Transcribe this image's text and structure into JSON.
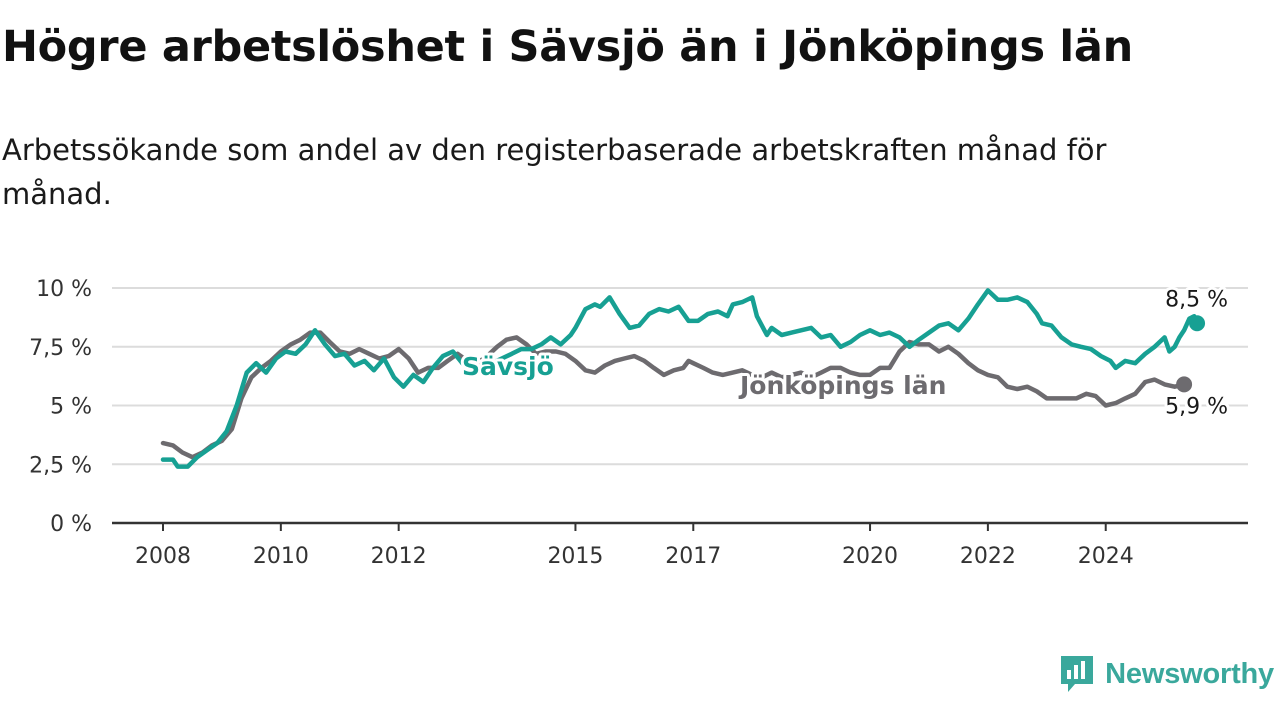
{
  "title": "Högre arbetslöshet i Sävsjö än i Jönköpings län",
  "subtitle": "Arbetssökande som andel av den registerbaserade arbetskraften månad för månad.",
  "brand": "Newsworthy",
  "colors": {
    "savsjo": "#17a093",
    "lan": "#6d6b6f",
    "grid": "#dcdcdc",
    "axis": "#333333"
  },
  "chart_data": {
    "type": "line",
    "title": "Högre arbetslöshet i Sävsjö än i Jönköpings län",
    "xlabel": "",
    "ylabel": "",
    "x_domain": [
      2008,
      2025.6
    ],
    "ylim": [
      0,
      10
    ],
    "x_ticks": [
      {
        "value": 2008,
        "label": "2008"
      },
      {
        "value": 2010,
        "label": "2010"
      },
      {
        "value": 2012,
        "label": "2012"
      },
      {
        "value": 2015,
        "label": "2015"
      },
      {
        "value": 2017,
        "label": "2017"
      },
      {
        "value": 2020,
        "label": "2020"
      },
      {
        "value": 2022,
        "label": "2022"
      },
      {
        "value": 2024,
        "label": "2024"
      }
    ],
    "y_ticks": [
      {
        "value": 0,
        "label": "0 %"
      },
      {
        "value": 2.5,
        "label": "2,5 %"
      },
      {
        "value": 5,
        "label": "5 %"
      },
      {
        "value": 7.5,
        "label": "7,5 %"
      },
      {
        "value": 10,
        "label": "10 %"
      }
    ],
    "series": [
      {
        "name": "Jönköpings län",
        "label": "Jönköpings län",
        "end_label": "5,9 %",
        "points": [
          [
            2008.0,
            3.4
          ],
          [
            2008.17,
            3.3
          ],
          [
            2008.33,
            3.0
          ],
          [
            2008.5,
            2.8
          ],
          [
            2008.67,
            3.0
          ],
          [
            2008.83,
            3.3
          ],
          [
            2009.0,
            3.5
          ],
          [
            2009.17,
            4.0
          ],
          [
            2009.33,
            5.3
          ],
          [
            2009.5,
            6.2
          ],
          [
            2009.67,
            6.6
          ],
          [
            2009.83,
            6.9
          ],
          [
            2010.0,
            7.3
          ],
          [
            2010.17,
            7.6
          ],
          [
            2010.33,
            7.8
          ],
          [
            2010.5,
            8.1
          ],
          [
            2010.67,
            8.1
          ],
          [
            2010.83,
            7.7
          ],
          [
            2011.0,
            7.3
          ],
          [
            2011.17,
            7.2
          ],
          [
            2011.33,
            7.4
          ],
          [
            2011.5,
            7.2
          ],
          [
            2011.67,
            7.0
          ],
          [
            2011.83,
            7.1
          ],
          [
            2012.0,
            7.4
          ],
          [
            2012.17,
            7.0
          ],
          [
            2012.33,
            6.4
          ],
          [
            2012.5,
            6.6
          ],
          [
            2012.67,
            6.6
          ],
          [
            2012.83,
            6.9
          ],
          [
            2013.0,
            7.2
          ],
          [
            2013.17,
            6.9
          ],
          [
            2013.33,
            6.8
          ],
          [
            2013.5,
            7.1
          ],
          [
            2013.67,
            7.5
          ],
          [
            2013.83,
            7.8
          ],
          [
            2014.0,
            7.9
          ],
          [
            2014.17,
            7.6
          ],
          [
            2014.33,
            7.2
          ],
          [
            2014.5,
            7.3
          ],
          [
            2014.67,
            7.3
          ],
          [
            2014.83,
            7.2
          ],
          [
            2015.0,
            6.9
          ],
          [
            2015.17,
            6.5
          ],
          [
            2015.33,
            6.4
          ],
          [
            2015.5,
            6.7
          ],
          [
            2015.67,
            6.9
          ],
          [
            2015.83,
            7.0
          ],
          [
            2016.0,
            7.1
          ],
          [
            2016.17,
            6.9
          ],
          [
            2016.33,
            6.6
          ],
          [
            2016.5,
            6.3
          ],
          [
            2016.67,
            6.5
          ],
          [
            2016.83,
            6.6
          ],
          [
            2016.92,
            6.9
          ],
          [
            2017.0,
            6.8
          ],
          [
            2017.17,
            6.6
          ],
          [
            2017.33,
            6.4
          ],
          [
            2017.5,
            6.3
          ],
          [
            2017.67,
            6.4
          ],
          [
            2017.83,
            6.5
          ],
          [
            2018.0,
            6.3
          ],
          [
            2018.17,
            6.2
          ],
          [
            2018.33,
            6.4
          ],
          [
            2018.5,
            6.2
          ],
          [
            2018.67,
            6.3
          ],
          [
            2018.83,
            6.4
          ],
          [
            2019.0,
            6.2
          ],
          [
            2019.17,
            6.4
          ],
          [
            2019.33,
            6.6
          ],
          [
            2019.5,
            6.6
          ],
          [
            2019.67,
            6.4
          ],
          [
            2019.83,
            6.3
          ],
          [
            2020.0,
            6.3
          ],
          [
            2020.17,
            6.6
          ],
          [
            2020.33,
            6.6
          ],
          [
            2020.5,
            7.3
          ],
          [
            2020.67,
            7.7
          ],
          [
            2020.83,
            7.6
          ],
          [
            2021.0,
            7.6
          ],
          [
            2021.17,
            7.3
          ],
          [
            2021.33,
            7.5
          ],
          [
            2021.5,
            7.2
          ],
          [
            2021.67,
            6.8
          ],
          [
            2021.83,
            6.5
          ],
          [
            2022.0,
            6.3
          ],
          [
            2022.17,
            6.2
          ],
          [
            2022.33,
            5.8
          ],
          [
            2022.5,
            5.7
          ],
          [
            2022.67,
            5.8
          ],
          [
            2022.83,
            5.6
          ],
          [
            2023.0,
            5.3
          ],
          [
            2023.17,
            5.3
          ],
          [
            2023.33,
            5.3
          ],
          [
            2023.5,
            5.3
          ],
          [
            2023.67,
            5.5
          ],
          [
            2023.83,
            5.4
          ],
          [
            2024.0,
            5.0
          ],
          [
            2024.17,
            5.1
          ],
          [
            2024.33,
            5.3
          ],
          [
            2024.5,
            5.5
          ],
          [
            2024.67,
            6.0
          ],
          [
            2024.83,
            6.1
          ],
          [
            2025.0,
            5.9
          ],
          [
            2025.17,
            5.8
          ],
          [
            2025.33,
            5.9
          ]
        ]
      },
      {
        "name": "Sävsjö",
        "label": "Sävsjö",
        "end_label": "8,5 %",
        "points": [
          [
            2008.0,
            2.7
          ],
          [
            2008.17,
            2.7
          ],
          [
            2008.25,
            2.4
          ],
          [
            2008.42,
            2.4
          ],
          [
            2008.58,
            2.8
          ],
          [
            2008.75,
            3.1
          ],
          [
            2008.92,
            3.4
          ],
          [
            2009.08,
            3.9
          ],
          [
            2009.25,
            5.0
          ],
          [
            2009.42,
            6.4
          ],
          [
            2009.58,
            6.8
          ],
          [
            2009.75,
            6.4
          ],
          [
            2009.92,
            7.0
          ],
          [
            2010.08,
            7.3
          ],
          [
            2010.25,
            7.2
          ],
          [
            2010.42,
            7.6
          ],
          [
            2010.58,
            8.2
          ],
          [
            2010.75,
            7.6
          ],
          [
            2010.92,
            7.1
          ],
          [
            2011.08,
            7.2
          ],
          [
            2011.25,
            6.7
          ],
          [
            2011.42,
            6.9
          ],
          [
            2011.58,
            6.5
          ],
          [
            2011.75,
            7.0
          ],
          [
            2011.92,
            6.2
          ],
          [
            2012.08,
            5.8
          ],
          [
            2012.25,
            6.3
          ],
          [
            2012.42,
            6.0
          ],
          [
            2012.58,
            6.6
          ],
          [
            2012.75,
            7.1
          ],
          [
            2012.92,
            7.3
          ],
          [
            2013.08,
            6.8
          ],
          [
            2013.25,
            6.4
          ],
          [
            2013.42,
            6.7
          ],
          [
            2013.58,
            6.8
          ],
          [
            2013.75,
            7.0
          ],
          [
            2013.92,
            7.2
          ],
          [
            2014.08,
            7.4
          ],
          [
            2014.25,
            7.4
          ],
          [
            2014.42,
            7.6
          ],
          [
            2014.58,
            7.9
          ],
          [
            2014.75,
            7.6
          ],
          [
            2014.92,
            8.0
          ],
          [
            2015.0,
            8.3
          ],
          [
            2015.17,
            9.1
          ],
          [
            2015.33,
            9.3
          ],
          [
            2015.42,
            9.2
          ],
          [
            2015.58,
            9.6
          ],
          [
            2015.75,
            8.9
          ],
          [
            2015.92,
            8.3
          ],
          [
            2016.08,
            8.4
          ],
          [
            2016.25,
            8.9
          ],
          [
            2016.42,
            9.1
          ],
          [
            2016.58,
            9.0
          ],
          [
            2016.75,
            9.2
          ],
          [
            2016.92,
            8.6
          ],
          [
            2017.08,
            8.6
          ],
          [
            2017.25,
            8.9
          ],
          [
            2017.42,
            9.0
          ],
          [
            2017.58,
            8.8
          ],
          [
            2017.67,
            9.3
          ],
          [
            2017.83,
            9.4
          ],
          [
            2018.0,
            9.6
          ],
          [
            2018.08,
            8.8
          ],
          [
            2018.25,
            8.0
          ],
          [
            2018.33,
            8.3
          ],
          [
            2018.5,
            8.0
          ],
          [
            2018.67,
            8.1
          ],
          [
            2018.83,
            8.2
          ],
          [
            2019.0,
            8.3
          ],
          [
            2019.17,
            7.9
          ],
          [
            2019.33,
            8.0
          ],
          [
            2019.5,
            7.5
          ],
          [
            2019.67,
            7.7
          ],
          [
            2019.83,
            8.0
          ],
          [
            2020.0,
            8.2
          ],
          [
            2020.17,
            8.0
          ],
          [
            2020.33,
            8.1
          ],
          [
            2020.5,
            7.9
          ],
          [
            2020.67,
            7.5
          ],
          [
            2020.83,
            7.8
          ],
          [
            2021.0,
            8.1
          ],
          [
            2021.17,
            8.4
          ],
          [
            2021.33,
            8.5
          ],
          [
            2021.5,
            8.2
          ],
          [
            2021.67,
            8.7
          ],
          [
            2021.83,
            9.3
          ],
          [
            2022.0,
            9.9
          ],
          [
            2022.17,
            9.5
          ],
          [
            2022.33,
            9.5
          ],
          [
            2022.5,
            9.6
          ],
          [
            2022.67,
            9.4
          ],
          [
            2022.83,
            8.9
          ],
          [
            2022.92,
            8.5
          ],
          [
            2023.08,
            8.4
          ],
          [
            2023.25,
            7.9
          ],
          [
            2023.42,
            7.6
          ],
          [
            2023.58,
            7.5
          ],
          [
            2023.75,
            7.4
          ],
          [
            2023.92,
            7.1
          ],
          [
            2024.08,
            6.9
          ],
          [
            2024.17,
            6.6
          ],
          [
            2024.33,
            6.9
          ],
          [
            2024.5,
            6.8
          ],
          [
            2024.67,
            7.2
          ],
          [
            2024.83,
            7.5
          ],
          [
            2025.0,
            7.9
          ],
          [
            2025.08,
            7.3
          ],
          [
            2025.17,
            7.5
          ],
          [
            2025.25,
            7.9
          ],
          [
            2025.33,
            8.2
          ],
          [
            2025.42,
            8.7
          ],
          [
            2025.5,
            8.8
          ],
          [
            2025.55,
            8.5
          ]
        ]
      }
    ]
  }
}
